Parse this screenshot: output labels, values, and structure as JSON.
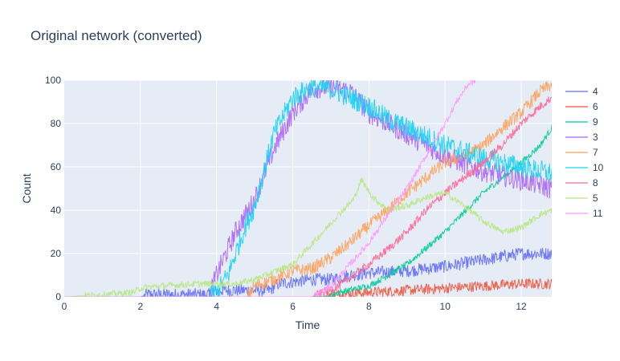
{
  "chart_data": {
    "type": "line",
    "title": "Original network (converted)",
    "xlabel": "Time",
    "ylabel": "Count",
    "xlim": [
      0,
      12.8
    ],
    "ylim": [
      0,
      100
    ],
    "x_ticks": [
      0,
      2,
      4,
      6,
      8,
      10,
      12
    ],
    "y_ticks": [
      0,
      20,
      40,
      60,
      80,
      100
    ],
    "grid": true,
    "legend_position": "right",
    "colors": {
      "plot_background": "#E5ECF6",
      "grid": "#FFFFFF",
      "text": "#2a3f5f"
    },
    "series": [
      {
        "name": "4",
        "color": "#636EFA",
        "noise": 3,
        "points": [
          [
            0,
            0
          ],
          [
            2.0,
            0
          ],
          [
            2.2,
            1
          ],
          [
            3.8,
            1
          ],
          [
            4.0,
            3
          ],
          [
            5.4,
            3
          ],
          [
            5.6,
            6
          ],
          [
            6.5,
            8
          ],
          [
            7.0,
            8
          ],
          [
            7.5,
            10
          ],
          [
            8.0,
            11
          ],
          [
            9.0,
            12
          ],
          [
            10.0,
            14
          ],
          [
            11.0,
            17
          ],
          [
            12.0,
            20
          ],
          [
            12.8,
            20
          ]
        ]
      },
      {
        "name": "6",
        "color": "#EF553B",
        "noise": 2.5,
        "points": [
          [
            0,
            0
          ],
          [
            6.8,
            0
          ],
          [
            7.0,
            1
          ],
          [
            8.0,
            2
          ],
          [
            9.0,
            3
          ],
          [
            10.0,
            4
          ],
          [
            11.0,
            5
          ],
          [
            12.0,
            6
          ],
          [
            12.8,
            6
          ]
        ]
      },
      {
        "name": "9",
        "color": "#00CC96",
        "noise": 1.5,
        "points": [
          [
            0,
            0
          ],
          [
            6.9,
            0
          ],
          [
            7.2,
            2
          ],
          [
            8.0,
            5
          ],
          [
            9.0,
            15
          ],
          [
            10.0,
            30
          ],
          [
            11.0,
            48
          ],
          [
            12.0,
            62
          ],
          [
            12.5,
            70
          ],
          [
            12.8,
            78
          ]
        ]
      },
      {
        "name": "3",
        "color": "#AB63FA",
        "noise": 5,
        "points": [
          [
            0,
            0
          ],
          [
            3.8,
            0
          ],
          [
            4.0,
            10
          ],
          [
            4.5,
            30
          ],
          [
            5.0,
            45
          ],
          [
            5.5,
            68
          ],
          [
            6.0,
            85
          ],
          [
            6.5,
            96
          ],
          [
            7.0,
            97
          ],
          [
            7.5,
            95
          ],
          [
            8.0,
            85
          ],
          [
            8.5,
            80
          ],
          [
            9.0,
            75
          ],
          [
            10.0,
            65
          ],
          [
            11.0,
            58
          ],
          [
            12.0,
            54
          ],
          [
            12.8,
            50
          ]
        ]
      },
      {
        "name": "7",
        "color": "#FFA15A",
        "noise": 3,
        "points": [
          [
            0,
            0
          ],
          [
            4.8,
            0
          ],
          [
            5.0,
            5
          ],
          [
            5.5,
            8
          ],
          [
            6.0,
            12
          ],
          [
            6.5,
            13
          ],
          [
            7.0,
            18
          ],
          [
            7.5,
            25
          ],
          [
            8.0,
            33
          ],
          [
            8.5,
            40
          ],
          [
            9.0,
            48
          ],
          [
            9.5,
            55
          ],
          [
            10.0,
            62
          ],
          [
            10.5,
            65
          ],
          [
            11.0,
            70
          ],
          [
            11.5,
            78
          ],
          [
            12.0,
            85
          ],
          [
            12.5,
            95
          ],
          [
            12.8,
            98
          ]
        ]
      },
      {
        "name": "10",
        "color": "#19D3F3",
        "noise": 5,
        "points": [
          [
            0,
            0
          ],
          [
            3.8,
            0
          ],
          [
            4.0,
            2
          ],
          [
            4.3,
            10
          ],
          [
            4.7,
            30
          ],
          [
            5.0,
            42
          ],
          [
            5.5,
            75
          ],
          [
            6.0,
            92
          ],
          [
            6.5,
            97
          ],
          [
            7.0,
            96
          ],
          [
            7.5,
            92
          ],
          [
            8.0,
            88
          ],
          [
            8.5,
            82
          ],
          [
            9.0,
            78
          ],
          [
            10.0,
            70
          ],
          [
            11.0,
            64
          ],
          [
            12.0,
            60
          ],
          [
            12.8,
            57
          ]
        ]
      },
      {
        "name": "8",
        "color": "#FF6692",
        "noise": 2,
        "points": [
          [
            0,
            0
          ],
          [
            6.5,
            0
          ],
          [
            6.8,
            2
          ],
          [
            7.2,
            5
          ],
          [
            7.6,
            10
          ],
          [
            8.0,
            15
          ],
          [
            8.5,
            22
          ],
          [
            9.0,
            30
          ],
          [
            9.5,
            40
          ],
          [
            10.0,
            48
          ],
          [
            10.5,
            55
          ],
          [
            11.0,
            62
          ],
          [
            11.5,
            70
          ],
          [
            12.0,
            80
          ],
          [
            12.5,
            88
          ],
          [
            12.8,
            92
          ]
        ]
      },
      {
        "name": "5",
        "color": "#B6E880",
        "noise": 1.5,
        "points": [
          [
            0,
            0
          ],
          [
            1.0,
            1
          ],
          [
            1.8,
            2
          ],
          [
            2.0,
            4
          ],
          [
            2.5,
            5
          ],
          [
            3.5,
            6
          ],
          [
            4.5,
            6
          ],
          [
            5.0,
            8
          ],
          [
            6.0,
            15
          ],
          [
            6.8,
            30
          ],
          [
            7.2,
            38
          ],
          [
            7.6,
            45
          ],
          [
            7.8,
            54
          ],
          [
            8.1,
            46
          ],
          [
            8.5,
            40
          ],
          [
            9.0,
            42
          ],
          [
            9.5,
            46
          ],
          [
            10.0,
            48
          ],
          [
            10.5,
            42
          ],
          [
            11.0,
            35
          ],
          [
            11.5,
            30
          ],
          [
            12.0,
            32
          ],
          [
            12.5,
            38
          ],
          [
            12.8,
            40
          ]
        ]
      },
      {
        "name": "11",
        "color": "#FF97FF",
        "noise": 1.5,
        "points": [
          [
            0,
            0
          ],
          [
            6.5,
            0
          ],
          [
            7.0,
            5
          ],
          [
            7.5,
            15
          ],
          [
            8.0,
            25
          ],
          [
            8.5,
            38
          ],
          [
            9.0,
            50
          ],
          [
            9.5,
            65
          ],
          [
            10.0,
            80
          ],
          [
            10.3,
            90
          ],
          [
            10.6,
            98
          ],
          [
            10.8,
            100
          ]
        ]
      }
    ]
  }
}
